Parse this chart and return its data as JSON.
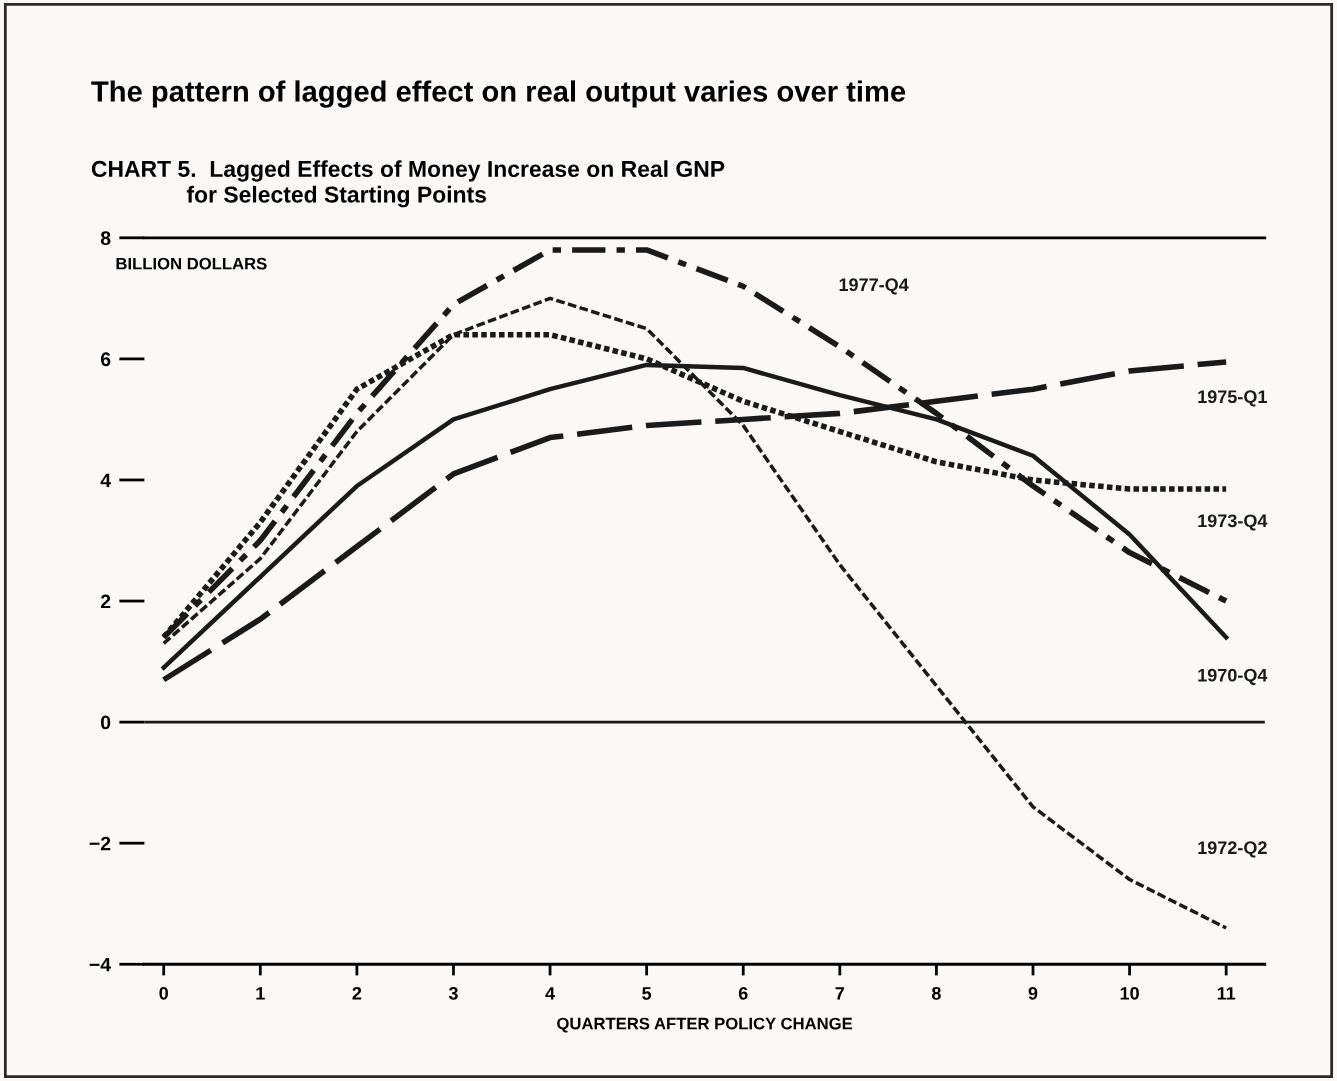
{
  "chart_data": {
    "type": "line",
    "title": "The pattern of lagged effect on real output varies over time",
    "subtitle": "CHART 5.  Lagged Effects of Money Increase on Real GNP\n               for Selected Starting Points",
    "ylabel": "BILLION DOLLARS",
    "xlabel": "QUARTERS AFTER POLICY CHANGE",
    "x": [
      0,
      1,
      2,
      3,
      4,
      5,
      6,
      7,
      8,
      9,
      10,
      11
    ],
    "series": [
      {
        "name": "1977-Q4",
        "color": "#1a1a1a",
        "line_style": "dashdot",
        "values": [
          1.4,
          3.0,
          5.1,
          6.9,
          7.8,
          7.8,
          7.2,
          6.2,
          5.1,
          3.9,
          2.8,
          2.0
        ]
      },
      {
        "name": "1975-Q1",
        "color": "#1a1a1a",
        "line_style": "longdash",
        "values": [
          0.7,
          1.7,
          2.9,
          4.1,
          4.7,
          4.9,
          5.0,
          5.1,
          5.3,
          5.5,
          5.8,
          5.95
        ]
      },
      {
        "name": "1973-Q4",
        "color": "#1a1a1a",
        "line_style": "dotted",
        "values": [
          1.4,
          3.3,
          5.5,
          6.4,
          6.4,
          6.0,
          5.3,
          4.8,
          4.3,
          4.0,
          3.85,
          3.85
        ]
      },
      {
        "name": "1970-Q4",
        "color": "#1a1a1a",
        "line_style": "solid",
        "values": [
          0.9,
          2.4,
          3.9,
          5.0,
          5.5,
          5.9,
          5.85,
          5.4,
          5.0,
          4.4,
          3.1,
          1.4
        ]
      },
      {
        "name": "1972-Q2",
        "color": "#1a1a1a",
        "line_style": "dashed",
        "values": [
          1.3,
          2.7,
          4.8,
          6.4,
          7.0,
          6.5,
          4.9,
          2.6,
          0.6,
          -1.4,
          -2.6,
          -3.4
        ]
      }
    ],
    "xlim": [
      -0.2,
      11.4
    ],
    "xticks": [
      0,
      1,
      2,
      3,
      4,
      5,
      6,
      7,
      8,
      9,
      10,
      11
    ],
    "ylim": [
      -4,
      8
    ],
    "yticks": [
      {
        "value": -4,
        "label": "−4"
      },
      {
        "value": -2,
        "label": "−2"
      },
      0,
      2,
      4,
      6,
      8
    ],
    "ref_lines": [
      {
        "axis": "y",
        "value": 0,
        "label": null,
        "color": "#1a1a1a"
      }
    ],
    "grid": false,
    "legend": false,
    "marker": "none"
  }
}
